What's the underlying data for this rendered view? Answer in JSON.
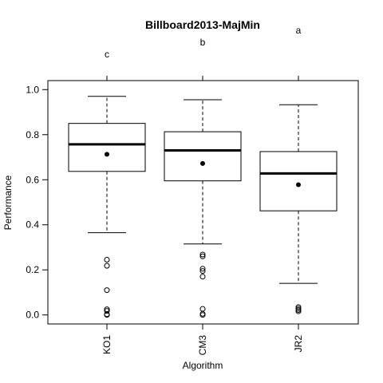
{
  "chart_data": {
    "type": "boxplot",
    "title": "Billboard2013-MajMin",
    "xlabel": "Algorithm",
    "ylabel": "Performance",
    "ylim": [
      -0.04,
      1.04
    ],
    "yticks": [
      "0.0",
      "0.2",
      "0.4",
      "0.6",
      "0.8",
      "1.0"
    ],
    "categories": [
      "KO1",
      "CM3",
      "JR2"
    ],
    "group_letters": [
      "c",
      "b",
      "a"
    ],
    "boxes": [
      {
        "whisker_low": 0.365,
        "q1": 0.637,
        "median": 0.757,
        "q3": 0.85,
        "whisker_high": 0.97,
        "mean": 0.713,
        "outliers": [
          0.245,
          0.218,
          0.11,
          0.025,
          0.018,
          0.003,
          0.0
        ]
      },
      {
        "whisker_low": 0.315,
        "q1": 0.595,
        "median": 0.73,
        "q3": 0.813,
        "whisker_high": 0.955,
        "mean": 0.672,
        "outliers": [
          0.268,
          0.26,
          0.205,
          0.195,
          0.17,
          0.027,
          0.005,
          0.0
        ]
      },
      {
        "whisker_low": 0.14,
        "q1": 0.462,
        "median": 0.628,
        "q3": 0.725,
        "whisker_high": 0.933,
        "mean": 0.578,
        "outliers": [
          0.035,
          0.028,
          0.022,
          0.016
        ]
      }
    ]
  }
}
